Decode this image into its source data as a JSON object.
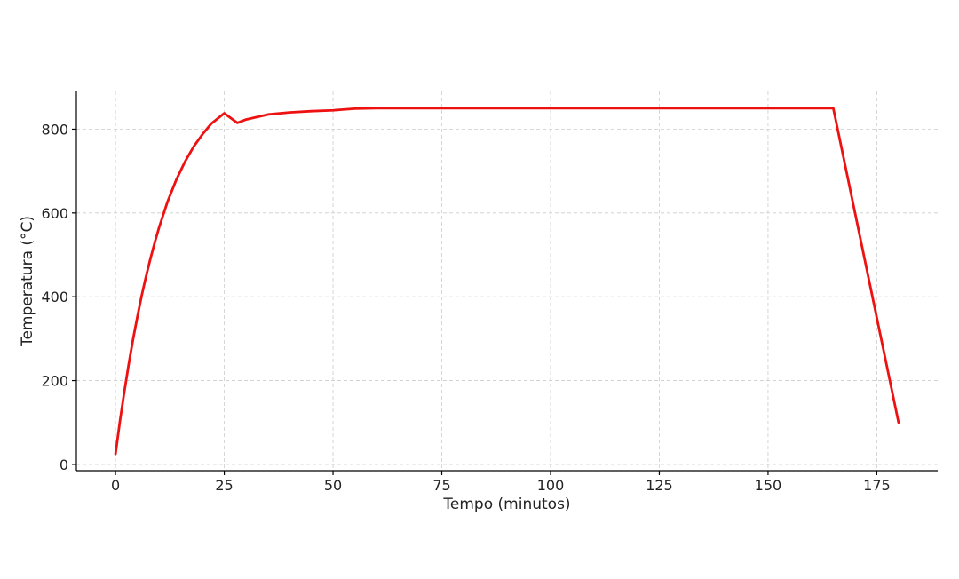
{
  "chart_data": {
    "type": "line",
    "title": "",
    "xlabel": "Tempo (minutos)",
    "ylabel": "Temperatura (°C)",
    "xlim": [
      -9,
      189
    ],
    "ylim": [
      -15,
      890
    ],
    "x_ticks": [
      0,
      25,
      50,
      75,
      100,
      125,
      150,
      175
    ],
    "y_ticks": [
      0,
      200,
      400,
      600,
      800
    ],
    "grid": true,
    "legend": "none",
    "series": [
      {
        "color": "#ee1111",
        "x": [
          0,
          1,
          2,
          3,
          4,
          5,
          6,
          7,
          8,
          9,
          10,
          12,
          14,
          16,
          18,
          20,
          22,
          25,
          28,
          30,
          35,
          40,
          45,
          50,
          55,
          60,
          165,
          180
        ],
        "y": [
          25,
          102,
          172,
          237,
          297,
          351,
          402,
          448,
          490,
          529,
          565,
          628,
          680,
          723,
          759,
          788,
          813,
          838,
          815,
          823,
          835,
          840,
          843,
          845,
          849,
          850,
          850,
          100
        ]
      }
    ]
  }
}
